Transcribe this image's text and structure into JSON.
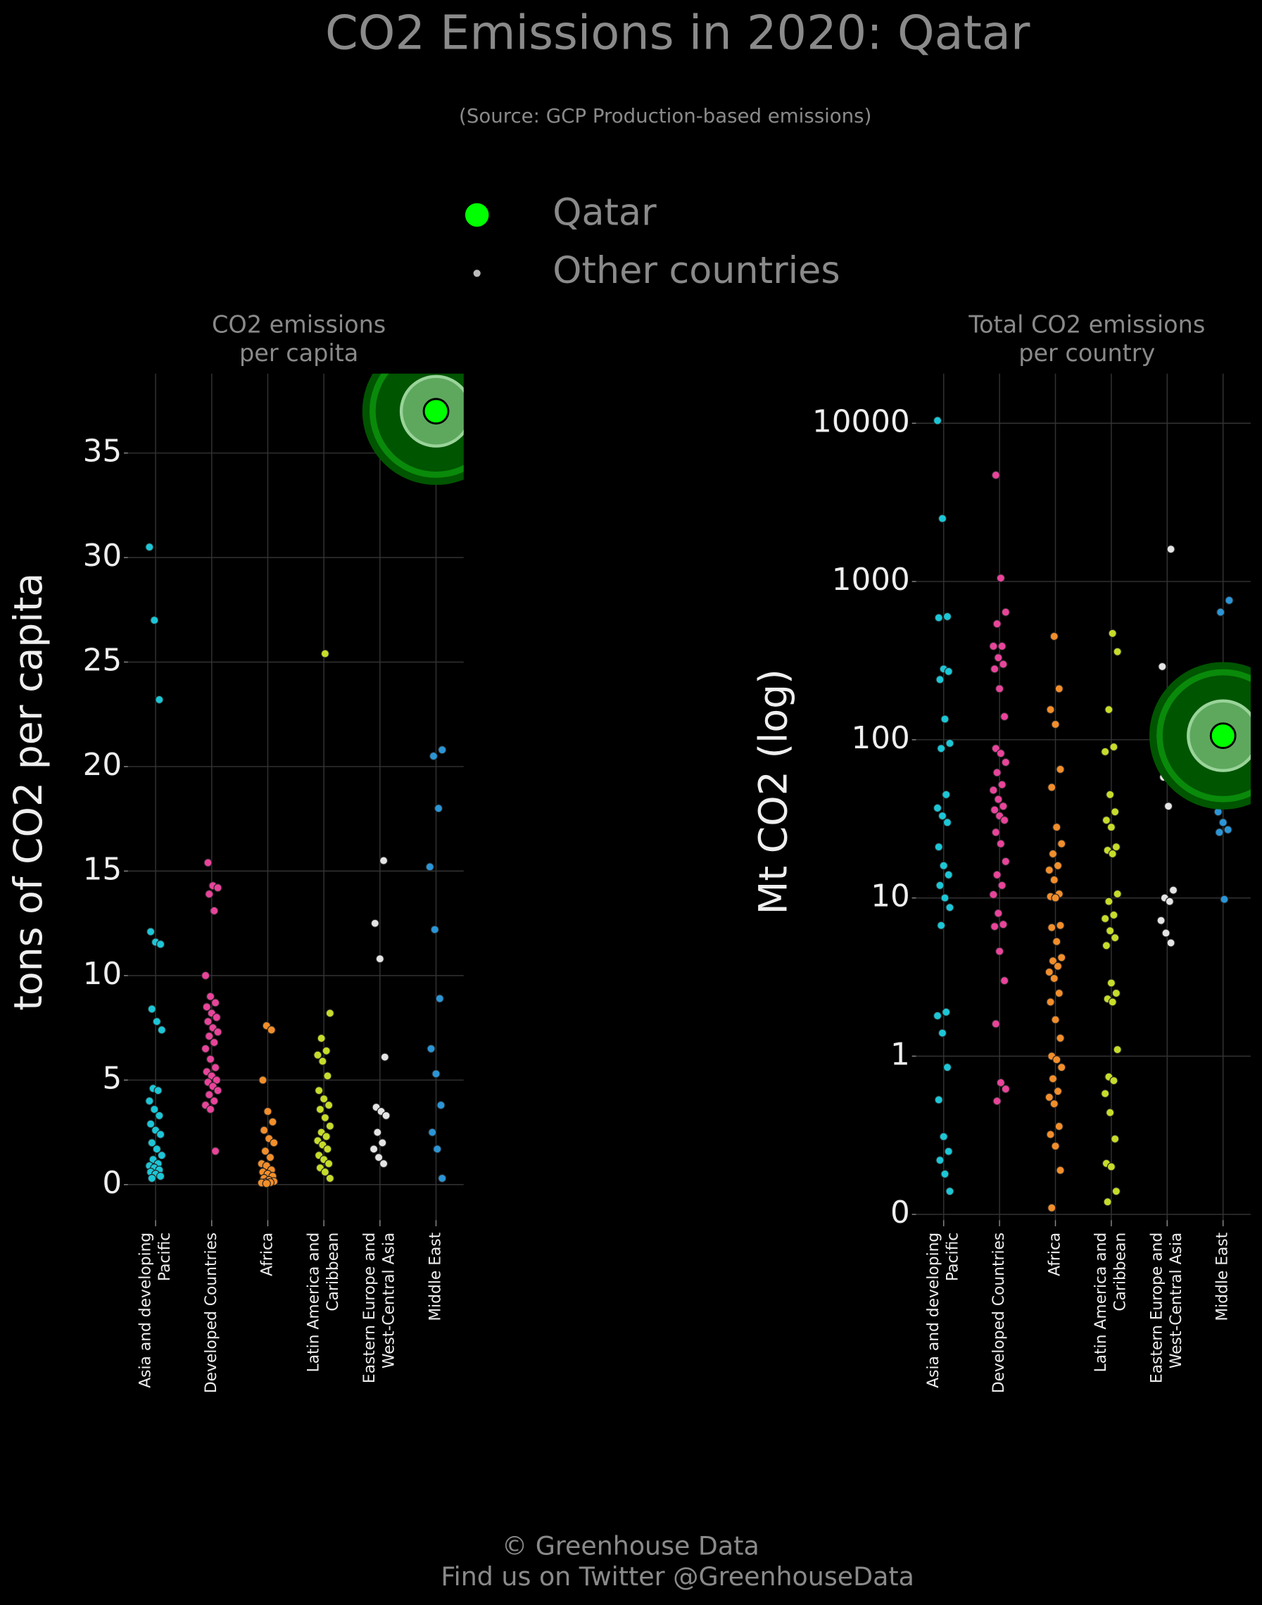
{
  "title": "CO2 Emissions in 2020: Qatar",
  "subtitle": "(Source: GCP Production-based emissions)",
  "legend": [
    {
      "name": "Qatar",
      "color": "#00ff00"
    },
    {
      "name": "Other countries",
      "color": "#bbbbbb"
    }
  ],
  "footer": [
    "© Greenhouse Data",
    "Find us on Twitter @GreenhouseData"
  ],
  "chart_data": [
    {
      "type": "strip",
      "title": "CO2 emissions\nper capita",
      "ylabel": "tons of CO2 per capita",
      "categories": [
        "Asia and developing\nPacific",
        "Developed Countries",
        "Africa",
        "Latin America and\nCaribbean",
        "Eastern Europe and\nWest-Central Asia",
        "Middle East"
      ],
      "colors": [
        "#1cc6d6",
        "#e8449a",
        "#f28e2b",
        "#c6dc2a",
        "#e4e4e4",
        "#2b95d6"
      ],
      "values": [
        [
          30.5,
          27.0,
          23.2,
          12.1,
          11.6,
          11.5,
          8.4,
          7.8,
          7.4,
          4.6,
          4.5,
          4.0,
          3.6,
          3.3,
          2.9,
          2.6,
          2.4,
          2.0,
          1.7,
          1.4,
          1.2,
          1.0,
          0.9,
          0.8,
          0.7,
          0.6,
          0.5,
          0.4,
          0.3
        ],
        [
          15.4,
          14.3,
          14.2,
          13.9,
          13.1,
          10.0,
          9.0,
          8.7,
          8.5,
          8.2,
          8.0,
          7.8,
          7.5,
          7.3,
          7.1,
          6.8,
          6.5,
          6.0,
          5.6,
          5.4,
          5.2,
          5.0,
          4.9,
          4.7,
          4.5,
          4.3,
          4.0,
          3.8,
          3.6,
          1.6
        ],
        [
          7.6,
          7.4,
          5.0,
          3.5,
          3.0,
          2.6,
          2.2,
          2.0,
          1.6,
          1.3,
          1.0,
          0.9,
          0.7,
          0.6,
          0.5,
          0.4,
          0.3,
          0.2,
          0.15,
          0.1,
          0.1,
          0.08,
          0.05
        ],
        [
          25.4,
          8.2,
          7.0,
          6.4,
          6.2,
          5.9,
          5.2,
          4.5,
          4.1,
          3.8,
          3.6,
          3.2,
          2.8,
          2.5,
          2.3,
          2.1,
          1.9,
          1.7,
          1.4,
          1.2,
          1.0,
          0.8,
          0.6,
          0.3
        ],
        [
          15.5,
          12.5,
          10.8,
          6.1,
          3.7,
          3.5,
          3.3,
          2.5,
          2.0,
          1.7,
          1.3,
          1.0
        ],
        [
          20.8,
          20.5,
          18.0,
          15.2,
          12.2,
          8.9,
          6.5,
          5.3,
          3.8,
          2.5,
          1.7,
          0.3
        ]
      ],
      "highlight": {
        "category": "Middle East",
        "value": 37.0
      },
      "ylim": [
        -1.7,
        38.8
      ],
      "yticks": [
        0,
        5,
        10,
        15,
        20,
        25,
        30,
        35
      ],
      "log": false,
      "grid": true
    },
    {
      "type": "strip",
      "title": "Total CO2 emissions\nper country",
      "ylabel": "Mt CO2 (log)",
      "categories": [
        "Asia and developing\nPacific",
        "Developed Countries",
        "Africa",
        "Latin America and\nCaribbean",
        "Eastern Europe and\nWest-Central Asia",
        "Middle East"
      ],
      "colors": [
        "#1cc6d6",
        "#e8449a",
        "#f28e2b",
        "#c6dc2a",
        "#e4e4e4",
        "#2b95d6"
      ],
      "values": [
        [
          10400,
          2500,
          600,
          590,
          280,
          270,
          240,
          135,
          95,
          88,
          45,
          37,
          33,
          30,
          21,
          16,
          14,
          12,
          10,
          8.7,
          6.7,
          1.9,
          1.8,
          1.4,
          0.85,
          0.53,
          0.31,
          0.25,
          0.22,
          0.18,
          0.14
        ],
        [
          4700,
          1050,
          640,
          540,
          390,
          390,
          330,
          300,
          280,
          210,
          140,
          88,
          82,
          72,
          62,
          52,
          48,
          42,
          38,
          36,
          33,
          31,
          26,
          22,
          17,
          14,
          12,
          10.5,
          8,
          6.8,
          6.6,
          4.6,
          3.0,
          1.6,
          0.68,
          0.62,
          0.52
        ],
        [
          450,
          210,
          155,
          125,
          65,
          50,
          28,
          22,
          19,
          16,
          15,
          13,
          10.6,
          10.2,
          10,
          6.7,
          6.5,
          5.3,
          4.2,
          4.0,
          3.7,
          3.4,
          3.1,
          2.5,
          2.2,
          1.7,
          1.3,
          1.0,
          0.95,
          0.85,
          0.72,
          0.6,
          0.55,
          0.5,
          0.36,
          0.32,
          0.27,
          0.19,
          0.11
        ],
        [
          470,
          360,
          155,
          90,
          84,
          45,
          35,
          31,
          28,
          21,
          20,
          19,
          10.6,
          9.5,
          7.8,
          7.4,
          6.2,
          5.6,
          5.0,
          2.9,
          2.5,
          2.3,
          2.2,
          1.1,
          0.74,
          0.7,
          0.58,
          0.44,
          0.3,
          0.21,
          0.2,
          0.14,
          0.12
        ],
        [
          1600,
          290,
          112,
          76,
          58,
          38,
          11.2,
          10,
          9.5,
          7.2,
          6.0,
          5.2
        ],
        [
          760,
          640,
          210,
          150,
          64,
          57,
          35,
          30,
          27,
          26,
          9.8
        ]
      ],
      "highlight": {
        "category": "Middle East",
        "value": 106
      },
      "ylim": [
        0.092,
        20600
      ],
      "yticks": [
        {
          "value": 0.1,
          "label": "0"
        },
        1,
        10,
        100,
        1000,
        10000
      ],
      "log": true,
      "grid": true
    }
  ]
}
